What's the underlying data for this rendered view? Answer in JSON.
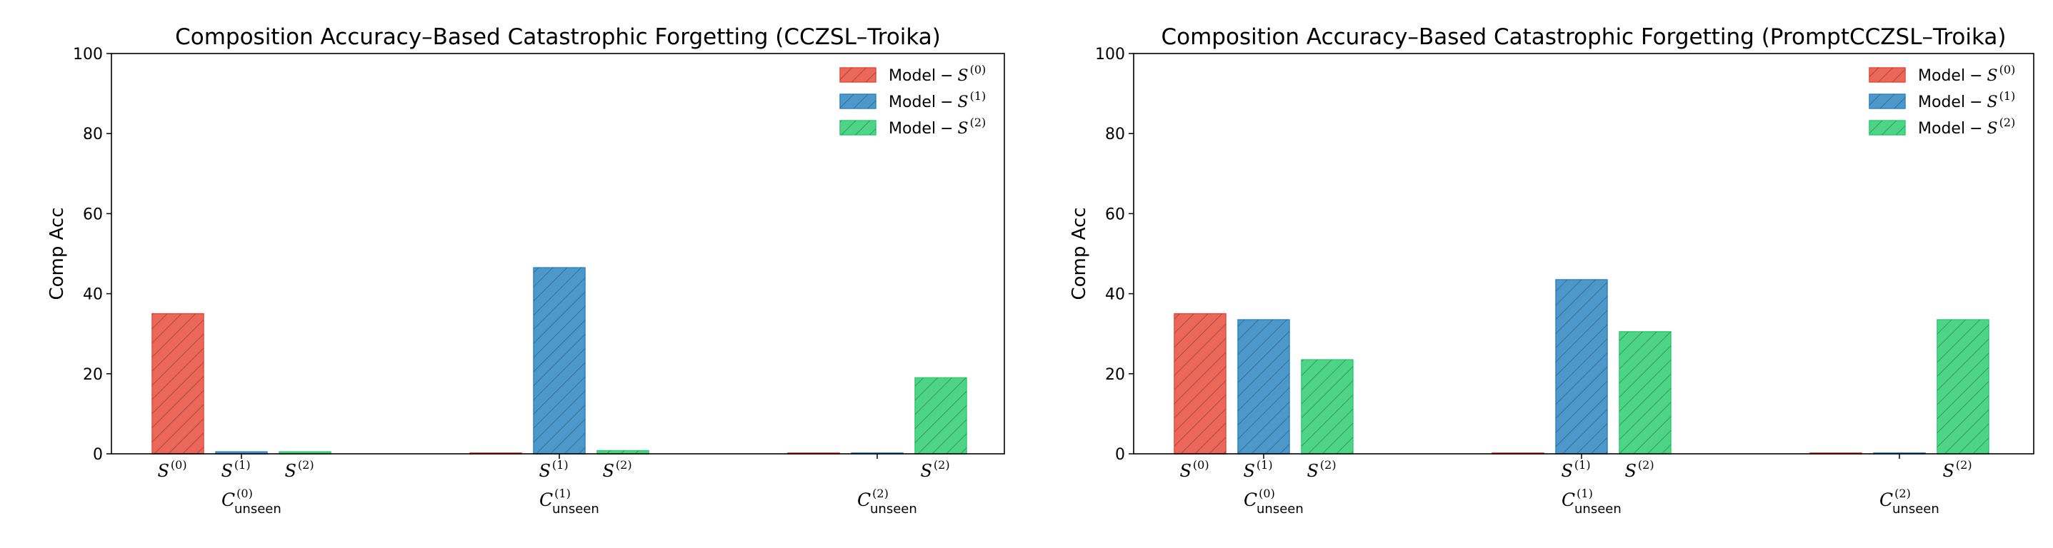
{
  "chart_data": [
    {
      "type": "bar",
      "title": "Composition Accuracy–Based Catastrophic Forgetting (CCZSL–Troika)",
      "ylabel": "Comp Acc",
      "ylim": [
        0,
        100
      ],
      "yticks": [
        "0",
        "20",
        "40",
        "60",
        "80",
        "100"
      ],
      "groups": [
        {
          "main": "C",
          "sub": "unseen",
          "sup": "(0)"
        },
        {
          "main": "C",
          "sub": "unseen",
          "sup": "(1)"
        },
        {
          "main": "C",
          "sub": "unseen",
          "sup": "(2)"
        }
      ],
      "series": [
        {
          "name": "Model",
          "stage": "S",
          "stage_sup": "(0)",
          "color": "#e74c3c",
          "values": [
            35.0,
            0.1,
            0.1
          ]
        },
        {
          "name": "Model",
          "stage": "S",
          "stage_sup": "(1)",
          "color": "#2e86c1",
          "values": [
            0.5,
            46.5,
            0.1
          ]
        },
        {
          "name": "Model",
          "stage": "S",
          "stage_sup": "(2)",
          "color": "#2ecc71",
          "values": [
            0.5,
            0.8,
            19.0
          ]
        }
      ],
      "bar_labels": [
        [
          {
            "main": "S",
            "sup": "(0)"
          },
          {
            "main": "S",
            "sup": "(1)"
          },
          {
            "main": "S",
            "sup": "(2)"
          }
        ],
        [
          {
            "main": "S",
            "sup": "(1)"
          },
          {
            "main": "S",
            "sup": "(2)"
          }
        ],
        [
          {
            "main": "S",
            "sup": "(2)"
          }
        ]
      ],
      "legend_position": "top-right"
    },
    {
      "type": "bar",
      "title": "Composition Accuracy–Based Catastrophic Forgetting (PromptCCZSL–Troika)",
      "ylabel": "Comp Acc",
      "ylim": [
        0,
        100
      ],
      "yticks": [
        "0",
        "20",
        "40",
        "60",
        "80",
        "100"
      ],
      "groups": [
        {
          "main": "C",
          "sub": "unseen",
          "sup": "(0)"
        },
        {
          "main": "C",
          "sub": "unseen",
          "sup": "(1)"
        },
        {
          "main": "C",
          "sub": "unseen",
          "sup": "(2)"
        }
      ],
      "series": [
        {
          "name": "Model",
          "stage": "S",
          "stage_sup": "(0)",
          "color": "#e74c3c",
          "values": [
            35.0,
            0.1,
            0.1
          ]
        },
        {
          "name": "Model",
          "stage": "S",
          "stage_sup": "(1)",
          "color": "#2e86c1",
          "values": [
            33.5,
            43.5,
            0.1
          ]
        },
        {
          "name": "Model",
          "stage": "S",
          "stage_sup": "(2)",
          "color": "#2ecc71",
          "values": [
            23.5,
            30.5,
            33.5
          ]
        }
      ],
      "bar_labels": [
        [
          {
            "main": "S",
            "sup": "(0)"
          },
          {
            "main": "S",
            "sup": "(1)"
          },
          {
            "main": "S",
            "sup": "(2)"
          }
        ],
        [
          {
            "main": "S",
            "sup": "(1)"
          },
          {
            "main": "S",
            "sup": "(2)"
          }
        ],
        [
          {
            "main": "S",
            "sup": "(2)"
          }
        ]
      ],
      "legend_position": "top-right"
    }
  ]
}
